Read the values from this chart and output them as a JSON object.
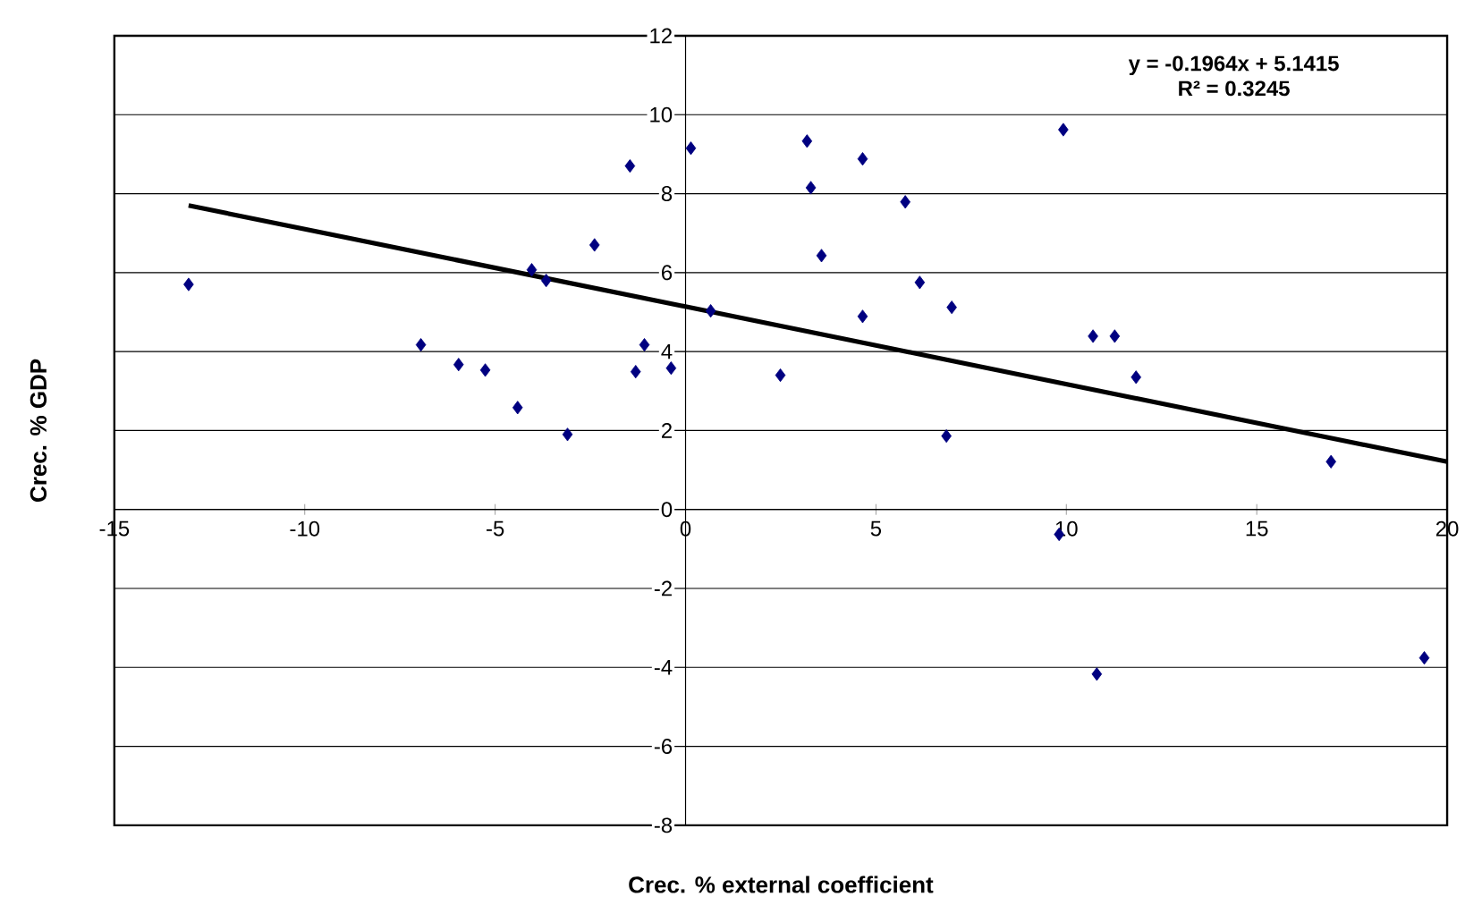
{
  "chart_data": {
    "type": "scatter",
    "xlabel": "Crec. % external coefficient",
    "ylabel": "Crec. % GDP",
    "annotations": [
      "y = -0.1964x  + 5.1415",
      "R² = 0.3245"
    ],
    "xlim": [
      -15,
      20
    ],
    "ylim": [
      -8,
      12
    ],
    "xticks": [
      -15,
      -10,
      -5,
      0,
      5,
      10,
      15,
      20
    ],
    "yticks": [
      -8,
      -6,
      -4,
      -2,
      0,
      2,
      4,
      6,
      8,
      10,
      12
    ],
    "grid": "y",
    "series": [
      {
        "marker": "diamond",
        "color": "#000080",
        "x": [
          -13.05,
          -6.95,
          -5.96,
          -5.26,
          -4.41,
          -4.04,
          -3.66,
          -3.1,
          -2.39,
          -1.46,
          -1.31,
          -1.08,
          -0.38,
          0.14,
          0.66,
          2.49,
          3.19,
          3.29,
          3.57,
          4.65,
          4.65,
          5.77,
          6.15,
          6.85,
          6.99,
          9.92,
          9.81,
          10.7,
          11.27,
          11.83,
          10.8,
          16.95,
          19.4
        ],
        "values": [
          5.7,
          4.17,
          3.67,
          3.53,
          2.58,
          6.07,
          5.8,
          1.9,
          6.7,
          8.7,
          3.49,
          4.17,
          3.58,
          9.15,
          5.03,
          3.4,
          9.33,
          8.15,
          6.43,
          8.88,
          4.89,
          7.79,
          5.75,
          1.86,
          5.12,
          9.62,
          -0.63,
          4.39,
          4.39,
          3.35,
          -4.17,
          1.21,
          -3.76
        ]
      },
      {
        "type": "line",
        "marker": "none",
        "color": "#000000",
        "x": [
          -13.05,
          20
        ],
        "values": [
          7.7,
          1.21
        ]
      }
    ]
  }
}
